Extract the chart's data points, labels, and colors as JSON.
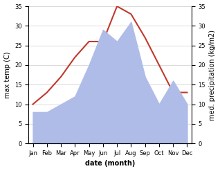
{
  "months": [
    "Jan",
    "Feb",
    "Mar",
    "Apr",
    "May",
    "Jun",
    "Jul",
    "Aug",
    "Sep",
    "Oct",
    "Nov",
    "Dec"
  ],
  "temperature": [
    10,
    13,
    17,
    22,
    26,
    26,
    35,
    33,
    27,
    20,
    13,
    13
  ],
  "precipitation": [
    8,
    8,
    10,
    12,
    20,
    29,
    26,
    31,
    17,
    10,
    16,
    10
  ],
  "temp_color": "#c0392b",
  "precip_color": "#b0bce8",
  "ylim": [
    0,
    35
  ],
  "yticks": [
    0,
    5,
    10,
    15,
    20,
    25,
    30,
    35
  ],
  "xlabel": "date (month)",
  "ylabel_left": "max temp (C)",
  "ylabel_right": "med. precipitation (kg/m2)",
  "bg_color": "#ffffff",
  "tick_fontsize": 6,
  "label_fontsize": 7,
  "xlabel_fontsize": 7
}
